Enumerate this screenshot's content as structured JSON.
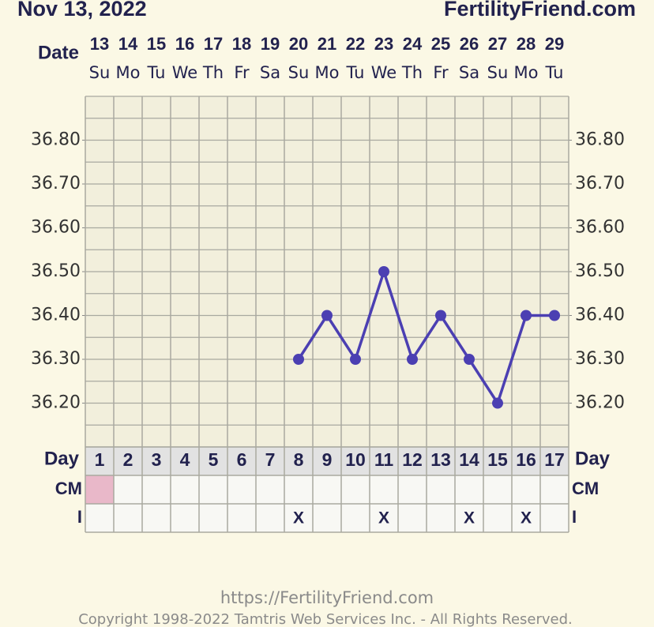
{
  "chart_data": {
    "type": "line",
    "title": "Nov 13, 2022",
    "site": "FertilityFriend.com",
    "date_label": "Date",
    "dates": [
      "13",
      "14",
      "15",
      "16",
      "17",
      "18",
      "19",
      "20",
      "21",
      "22",
      "23",
      "24",
      "25",
      "26",
      "27",
      "28",
      "29"
    ],
    "weekdays": [
      "Su",
      "Mo",
      "Tu",
      "We",
      "Th",
      "Fr",
      "Sa",
      "Su",
      "Mo",
      "Tu",
      "We",
      "Th",
      "Fr",
      "Sa",
      "Su",
      "Mo",
      "Tu"
    ],
    "day_label": "Day",
    "categories": [
      1,
      2,
      3,
      4,
      5,
      6,
      7,
      8,
      9,
      10,
      11,
      12,
      13,
      14,
      15,
      16,
      17
    ],
    "values": [
      null,
      null,
      null,
      null,
      null,
      null,
      null,
      36.3,
      36.4,
      36.3,
      36.5,
      36.3,
      36.4,
      36.3,
      36.2,
      36.4,
      36.4
    ],
    "color": "#4b3fb2",
    "ylim": [
      36.1,
      36.9
    ],
    "yticks": [
      {
        "value": 36.2,
        "label": "36.20"
      },
      {
        "value": 36.3,
        "label": "36.30"
      },
      {
        "value": 36.4,
        "label": "36.40"
      },
      {
        "value": 36.5,
        "label": "36.50"
      },
      {
        "value": 36.6,
        "label": "36.60"
      },
      {
        "value": 36.7,
        "label": "36.70"
      },
      {
        "value": 36.8,
        "label": "36.80"
      }
    ],
    "grid": true,
    "cm_label": "CM",
    "cm_colors": [
      "#e9b8c9",
      null,
      null,
      null,
      null,
      null,
      null,
      null,
      null,
      null,
      null,
      null,
      null,
      null,
      null,
      null,
      null
    ],
    "intercourse_label": "I",
    "intercourse": [
      null,
      null,
      null,
      null,
      null,
      null,
      null,
      "X",
      null,
      null,
      "X",
      null,
      null,
      "X",
      null,
      "X",
      null
    ]
  },
  "footer": {
    "url": "https://FertilityFriend.com",
    "copyright": "Copyright 1998-2022 Tamtris Web Services Inc. - All Rights Reserved."
  }
}
